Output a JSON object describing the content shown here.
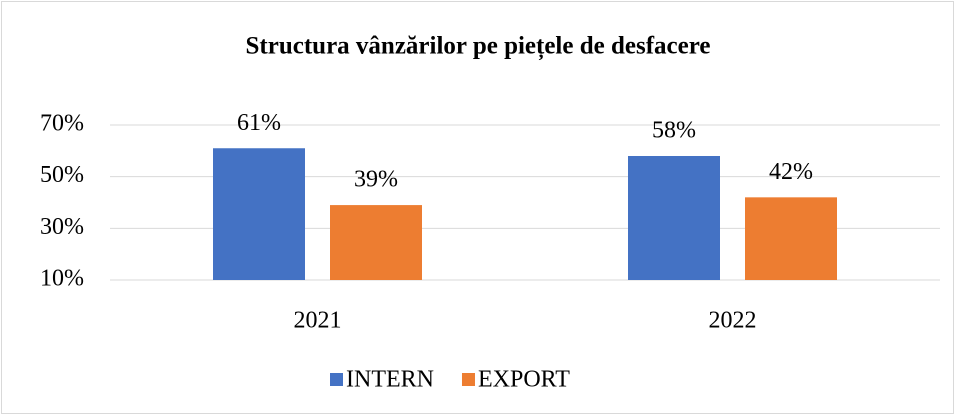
{
  "chart_data": {
    "type": "bar",
    "title": "Structura vânzărilor pe piețele de desfacere",
    "categories": [
      "2021",
      "2022"
    ],
    "series": [
      {
        "name": "INTERN",
        "color": "#4472c4",
        "values": [
          61,
          58
        ],
        "value_labels": [
          "61%",
          "58%"
        ]
      },
      {
        "name": "EXPORT",
        "color": "#ed7d31",
        "values": [
          39,
          42
        ],
        "value_labels": [
          "39%",
          "42%"
        ]
      }
    ],
    "ylim": [
      10,
      70
    ],
    "yticks": [
      {
        "value": 10,
        "label": "10%"
      },
      {
        "value": 30,
        "label": "30%"
      },
      {
        "value": 50,
        "label": "50%"
      },
      {
        "value": 70,
        "label": "70%"
      }
    ],
    "grid": true,
    "legend": "bottom"
  }
}
